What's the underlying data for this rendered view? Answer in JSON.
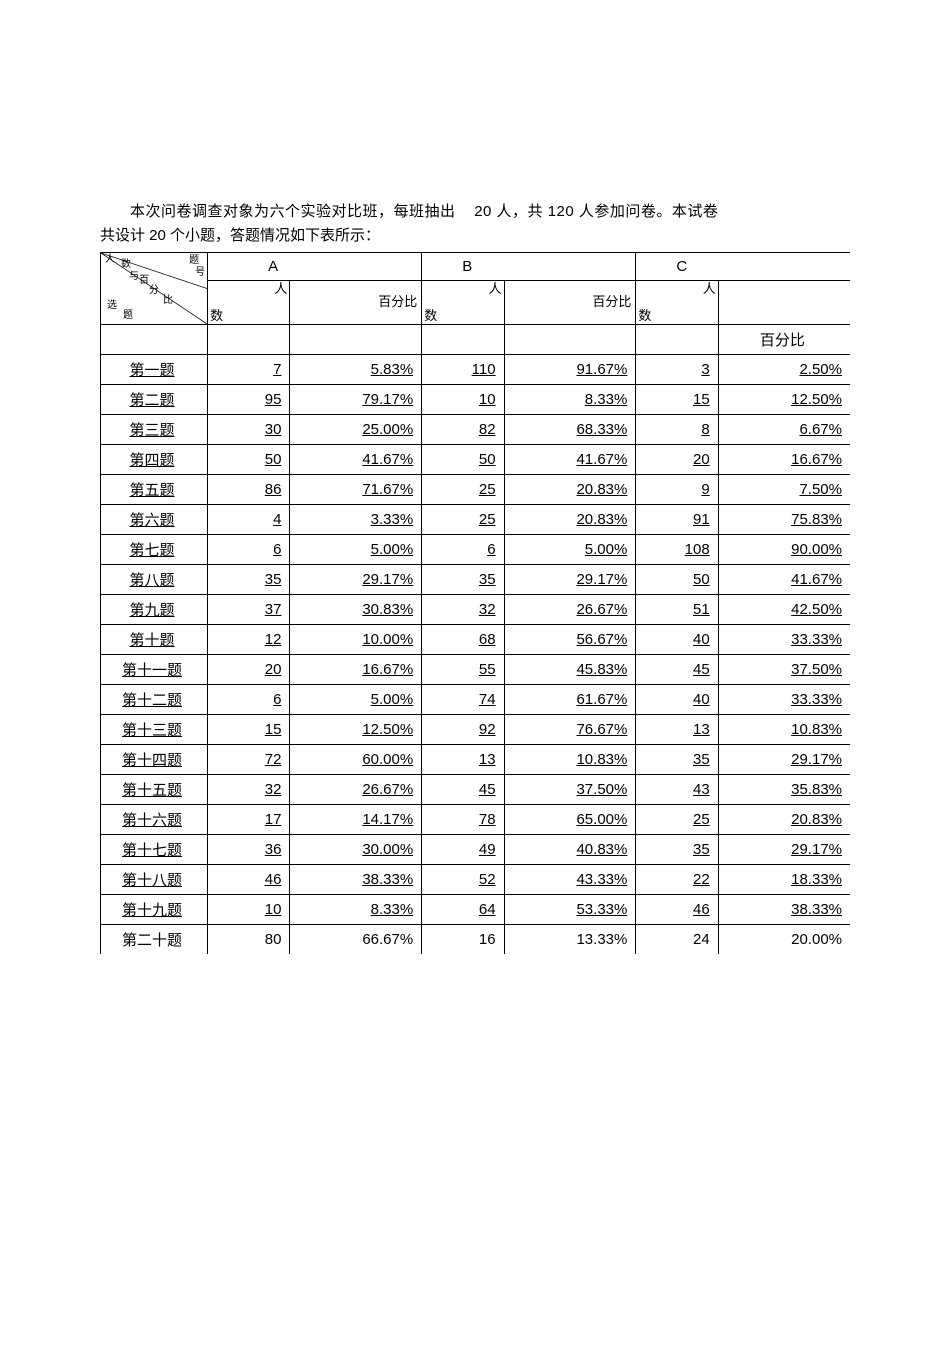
{
  "intro": {
    "line1_part1": "本次问卷调查对象为六个实验对比班，每班抽出",
    "line1_part2": "20 人，共 120 人参加问卷。本试卷",
    "line2": "共设计 20 个小题，答题情况如下表所示："
  },
  "header": {
    "corner_labels": [
      "人",
      "数",
      "与",
      "百",
      "分",
      "比",
      "题",
      "号",
      "选",
      "题"
    ],
    "groups": [
      "A",
      "B",
      "C"
    ],
    "sub_count_top": "人",
    "sub_count_bottom": "数",
    "sub_pct": "百分比"
  },
  "rows": [
    {
      "label": "第一题",
      "a_n": "7",
      "a_p": "5.83%",
      "b_n": "110",
      "b_p": "91.67%",
      "c_n": "3",
      "c_p": "2.50%"
    },
    {
      "label": "第二题",
      "a_n": "95",
      "a_p": "79.17%",
      "b_n": "10",
      "b_p": "8.33%",
      "c_n": "15",
      "c_p": "12.50%"
    },
    {
      "label": "第三题",
      "a_n": "30",
      "a_p": "25.00%",
      "b_n": "82",
      "b_p": "68.33%",
      "c_n": "8",
      "c_p": "6.67%"
    },
    {
      "label": "第四题",
      "a_n": "50",
      "a_p": "41.67%",
      "b_n": "50",
      "b_p": "41.67%",
      "c_n": "20",
      "c_p": "16.67%"
    },
    {
      "label": "第五题",
      "a_n": "86",
      "a_p": "71.67%",
      "b_n": "25",
      "b_p": "20.83%",
      "c_n": "9",
      "c_p": "7.50%"
    },
    {
      "label": "第六题",
      "a_n": "4",
      "a_p": "3.33%",
      "b_n": "25",
      "b_p": "20.83%",
      "c_n": "91",
      "c_p": "75.83%"
    },
    {
      "label": "第七题",
      "a_n": "6",
      "a_p": "5.00%",
      "b_n": "6",
      "b_p": "5.00%",
      "c_n": "108",
      "c_p": "90.00%"
    },
    {
      "label": "第八题",
      "a_n": "35",
      "a_p": "29.17%",
      "b_n": "35",
      "b_p": "29.17%",
      "c_n": "50",
      "c_p": "41.67%"
    },
    {
      "label": "第九题",
      "a_n": "37",
      "a_p": "30.83%",
      "b_n": "32",
      "b_p": "26.67%",
      "c_n": "51",
      "c_p": "42.50%"
    },
    {
      "label": "第十题",
      "a_n": "12",
      "a_p": "10.00%",
      "b_n": "68",
      "b_p": "56.67%",
      "c_n": "40",
      "c_p": "33.33%"
    },
    {
      "label": "第十一题",
      "a_n": "20",
      "a_p": "16.67%",
      "b_n": "55",
      "b_p": "45.83%",
      "c_n": "45",
      "c_p": "37.50%"
    },
    {
      "label": "第十二题",
      "a_n": "6",
      "a_p": "5.00%",
      "b_n": "74",
      "b_p": "61.67%",
      "c_n": "40",
      "c_p": "33.33%"
    },
    {
      "label": "第十三题",
      "a_n": "15",
      "a_p": "12.50%",
      "b_n": "92",
      "b_p": "76.67%",
      "c_n": "13",
      "c_p": "10.83%"
    },
    {
      "label": "第十四题",
      "a_n": "72",
      "a_p": "60.00%",
      "b_n": "13",
      "b_p": "10.83%",
      "c_n": "35",
      "c_p": "29.17%"
    },
    {
      "label": "第十五题",
      "a_n": "32",
      "a_p": "26.67%",
      "b_n": "45",
      "b_p": "37.50%",
      "c_n": "43",
      "c_p": "35.83%"
    },
    {
      "label": "第十六题",
      "a_n": "17",
      "a_p": "14.17%",
      "b_n": "78",
      "b_p": "65.00%",
      "c_n": "25",
      "c_p": "20.83%"
    },
    {
      "label": "第十七题",
      "a_n": "36",
      "a_p": "30.00%",
      "b_n": "49",
      "b_p": "40.83%",
      "c_n": "35",
      "c_p": "29.17%"
    },
    {
      "label": "第十八题",
      "a_n": "46",
      "a_p": "38.33%",
      "b_n": "52",
      "b_p": "43.33%",
      "c_n": "22",
      "c_p": "18.33%"
    },
    {
      "label": "第十九题",
      "a_n": "10",
      "a_p": "8.33%",
      "b_n": "64",
      "b_p": "53.33%",
      "c_n": "46",
      "c_p": "38.33%"
    },
    {
      "label": "第二十题",
      "a_n": "80",
      "a_p": "66.67%",
      "b_n": "16",
      "b_p": "13.33%",
      "c_n": "24",
      "c_p": "20.00%"
    }
  ],
  "table_style": {
    "border_color": "#000000",
    "background_color": "#ffffff",
    "text_color": "#000000",
    "font_size": 15,
    "column_widths_pct": [
      13,
      10,
      15,
      10,
      15,
      10,
      15
    ]
  }
}
